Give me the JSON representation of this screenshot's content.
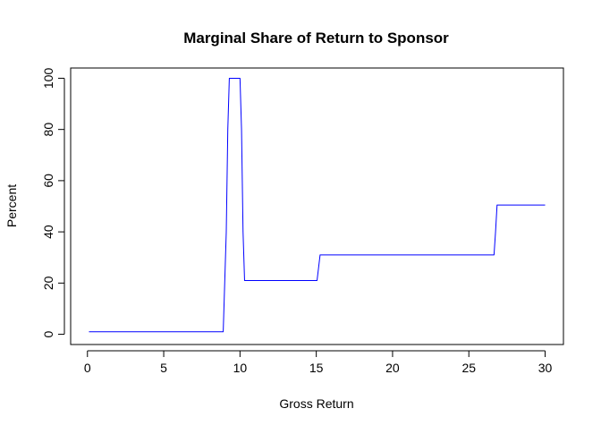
{
  "chart_data": {
    "type": "line",
    "title": "Marginal Share of Return to Sponsor",
    "xlabel": "Gross Return",
    "ylabel": "Percent",
    "xlim": [
      -1.1,
      31.2
    ],
    "ylim": [
      -4,
      104
    ],
    "x_ticks": [
      0,
      5,
      10,
      15,
      20,
      25,
      30
    ],
    "y_ticks": [
      0,
      20,
      40,
      60,
      80,
      100
    ],
    "grid": false,
    "legend": "none",
    "series": [
      {
        "color": "#0000ff",
        "x": [
          0.1,
          8.9,
          9.1,
          9.2,
          9.3,
          9.4,
          9.5,
          9.6,
          9.7,
          9.8,
          9.9,
          10.0,
          10.1,
          10.2,
          10.3,
          15.05,
          15.15,
          15.25,
          26.65,
          26.75,
          26.85,
          30.0
        ],
        "y": [
          1,
          1,
          40,
          80,
          100,
          100,
          100,
          100,
          100,
          100,
          100,
          100,
          80,
          40,
          21,
          21,
          26,
          31,
          31,
          40,
          50.5,
          50.5
        ]
      }
    ]
  }
}
